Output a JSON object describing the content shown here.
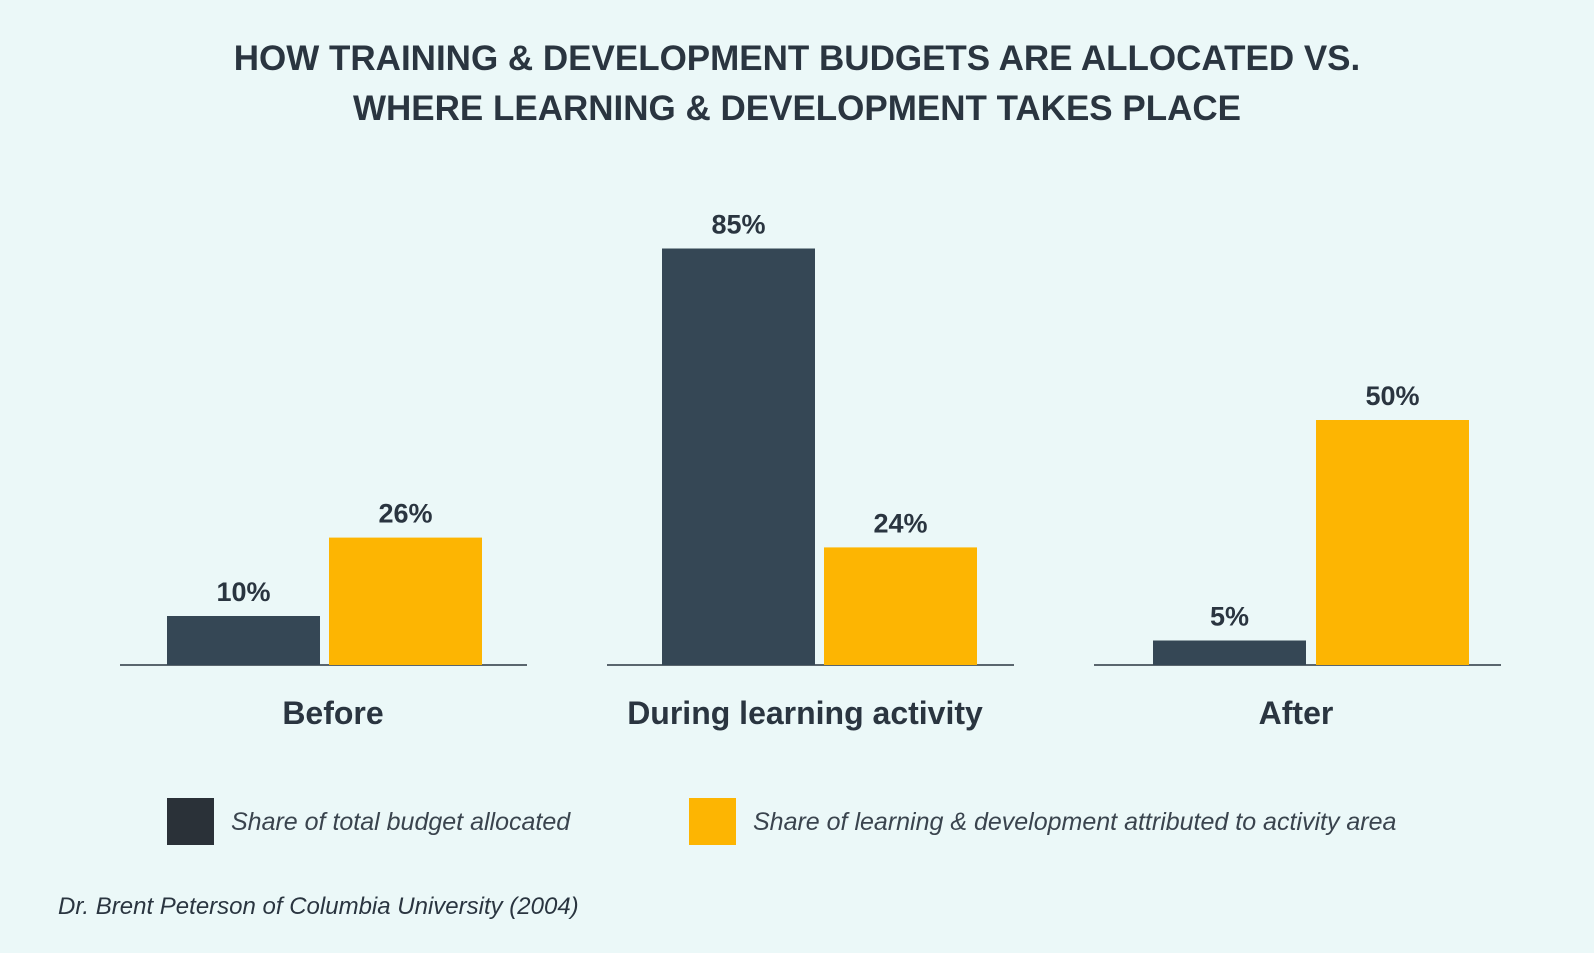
{
  "chart_data": {
    "type": "bar",
    "title_lines": [
      "HOW TRAINING & DEVELOPMENT BUDGETS ARE ALLOCATED VS.",
      "WHERE LEARNING & DEVELOPMENT TAKES PLACE"
    ],
    "categories": [
      "Before",
      "During learning activity",
      "After"
    ],
    "series": [
      {
        "name": "Share of total budget allocated",
        "values": [
          10,
          85,
          5
        ],
        "labels": [
          "10%",
          "85%",
          "5%"
        ],
        "color": "#354755"
      },
      {
        "name": "Share of learning & development attributed to activity area",
        "values": [
          26,
          24,
          50
        ],
        "labels": [
          "26%",
          "24%",
          "50%"
        ],
        "color": "#fdb502"
      }
    ],
    "ylim": [
      0,
      100
    ],
    "grid": false,
    "legend_position": "bottom",
    "source": "Dr. Brent Peterson of Columbia University (2004)"
  },
  "colors": {
    "background": "#ebf8f8",
    "text": "#2a3540",
    "baseline": "#2a3540"
  }
}
